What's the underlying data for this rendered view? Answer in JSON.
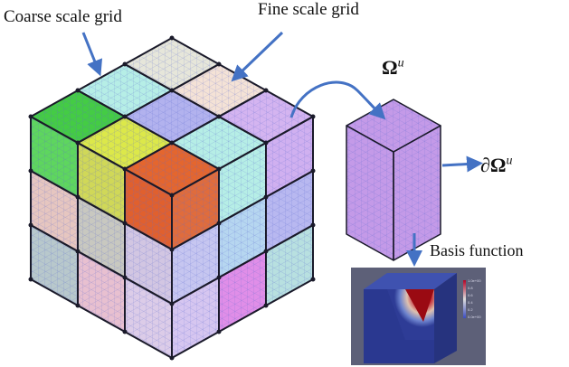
{
  "labels": {
    "coarse": "Coarse scale grid",
    "fine": "Fine scale grid",
    "omega": "Ω",
    "omega_sup": "u",
    "boundary": "∂Ω",
    "boundary_sup": "u",
    "basis": "Basis function"
  },
  "colorbar": {
    "ticks": [
      "1.0e+00",
      "0.8",
      "0.6",
      "0.4",
      "0.2",
      "0.0e+00"
    ],
    "colormap": "cool-to-warm (blue-white-red)"
  },
  "colors": {
    "arrow": "#4472c4",
    "edge": "#1a1a2a",
    "subcube": "#c49ae8",
    "top": [
      [
        "#e6e6da",
        "#f4e2d6",
        "#d4b4f0"
      ],
      [
        "#b6eee6",
        "#b2b2ee",
        "#b6eee6"
      ],
      [
        "#44cc44",
        "#dce84a",
        "#e4662e"
      ]
    ],
    "left": [
      [
        "#5ed65e",
        "#d0d858",
        "#e0602e"
      ],
      [
        "#e6c6c0",
        "#c8c8c0",
        "#d2c6e2"
      ],
      [
        "#b8c8cc",
        "#e8c0d0",
        "#dccce8"
      ]
    ],
    "right": [
      [
        "#e06c3c",
        "#b6eee6",
        "#d0b0f0"
      ],
      [
        "#c6c6f0",
        "#b6d6f0",
        "#b8b8f0"
      ],
      [
        "#d6c6f0",
        "#e08ee8",
        "#b8e0e0"
      ]
    ]
  }
}
